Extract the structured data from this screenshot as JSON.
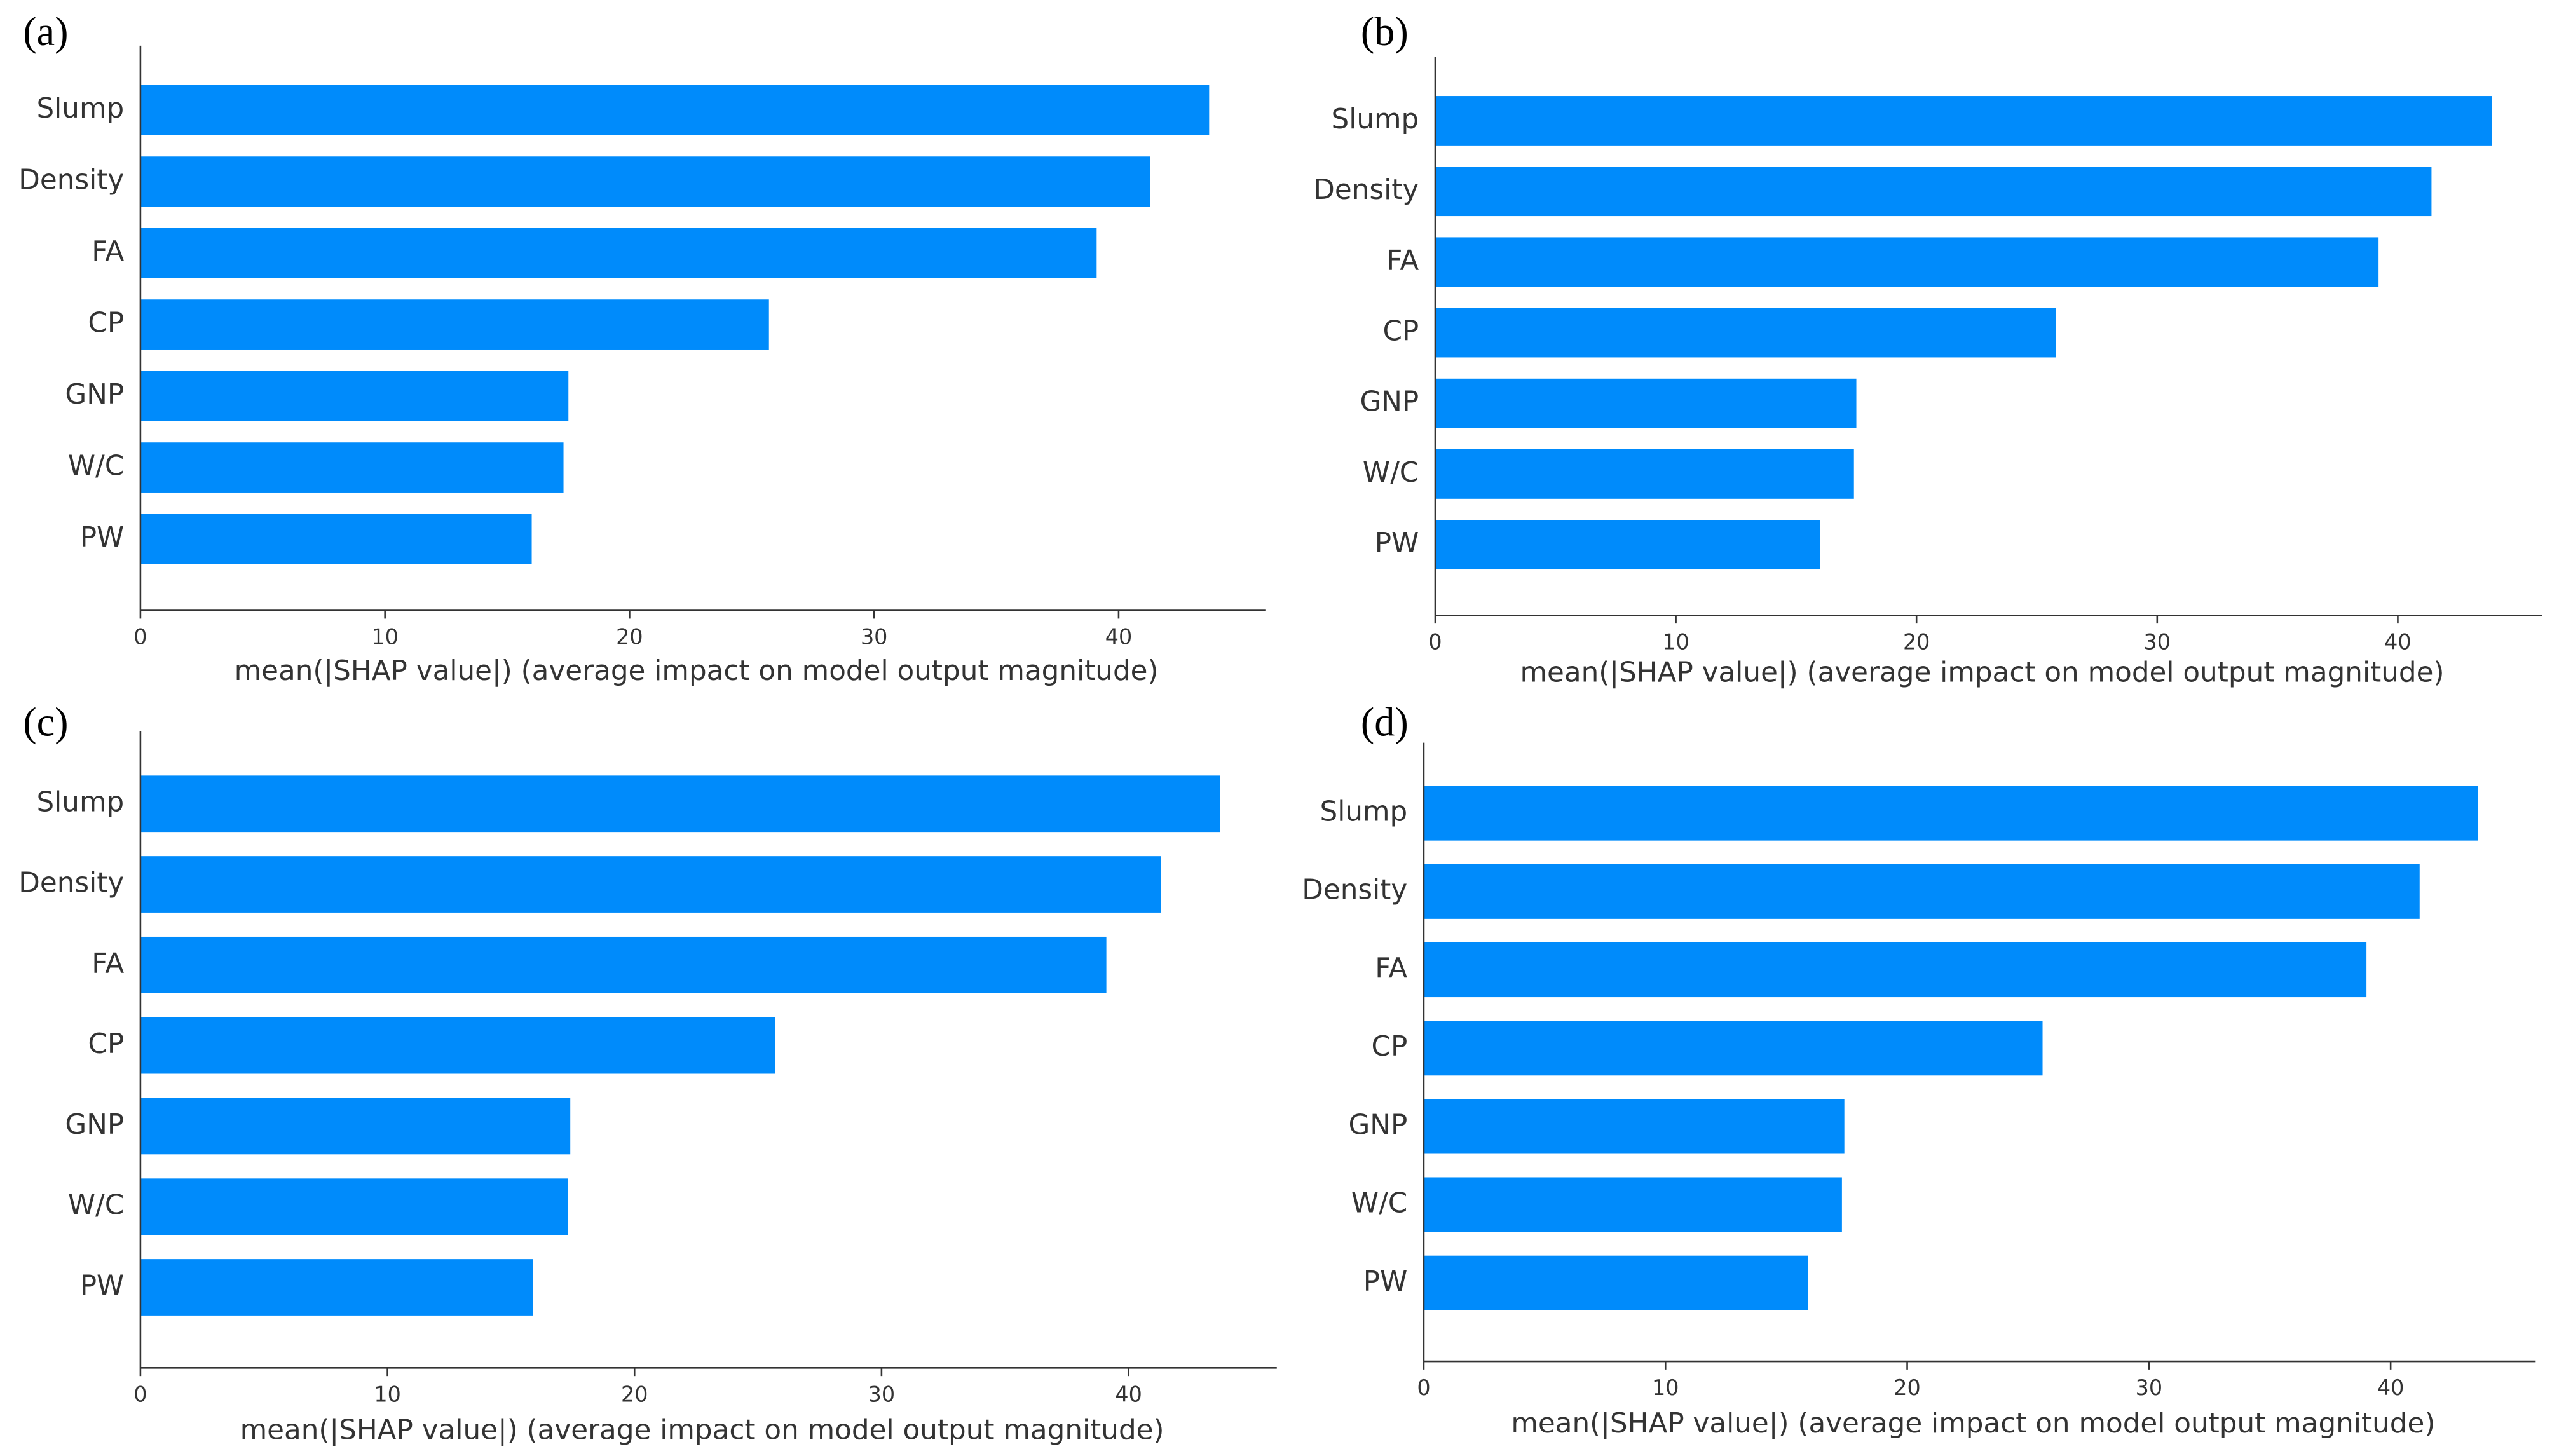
{
  "chart_data": [
    {
      "type": "bar",
      "orientation": "horizontal",
      "label": "(a)",
      "categories": [
        "Slump",
        "Density",
        "FA",
        "CP",
        "GNP",
        "W/C",
        "PW"
      ],
      "values": [
        43.7,
        41.3,
        39.1,
        25.7,
        17.5,
        17.3,
        16.0
      ],
      "color": "#008bfb",
      "xlim": [
        0,
        46
      ],
      "xticks": [
        0,
        10,
        20,
        30,
        40
      ],
      "xlabel": "mean(|SHAP value|) (average impact on model output magnitude)"
    },
    {
      "type": "bar",
      "orientation": "horizontal",
      "label": "(b)",
      "categories": [
        "Slump",
        "Density",
        "FA",
        "CP",
        "GNP",
        "W/C",
        "PW"
      ],
      "values": [
        43.9,
        41.4,
        39.2,
        25.8,
        17.5,
        17.4,
        16.0
      ],
      "color": "#008bfb",
      "xlim": [
        0,
        46
      ],
      "xticks": [
        0,
        10,
        20,
        30,
        40
      ],
      "xlabel": "mean(|SHAP value|) (average impact on model output magnitude)"
    },
    {
      "type": "bar",
      "orientation": "horizontal",
      "label": "(c)",
      "categories": [
        "Slump",
        "Density",
        "FA",
        "CP",
        "GNP",
        "W/C",
        "PW"
      ],
      "values": [
        43.7,
        41.3,
        39.1,
        25.7,
        17.4,
        17.3,
        15.9
      ],
      "color": "#008bfb",
      "xlim": [
        0,
        46
      ],
      "xticks": [
        0,
        10,
        20,
        30,
        40
      ],
      "xlabel": "mean(|SHAP value|) (average impact on model output magnitude)"
    },
    {
      "type": "bar",
      "orientation": "horizontal",
      "label": "(d)",
      "categories": [
        "Slump",
        "Density",
        "FA",
        "CP",
        "GNP",
        "W/C",
        "PW"
      ],
      "values": [
        43.6,
        41.2,
        39.0,
        25.6,
        17.4,
        17.3,
        15.9
      ],
      "color": "#008bfb",
      "xlim": [
        0,
        46
      ],
      "xticks": [
        0,
        10,
        20,
        30,
        40
      ],
      "xlabel": "mean(|SHAP value|) (average impact on model output magnitude)"
    }
  ]
}
